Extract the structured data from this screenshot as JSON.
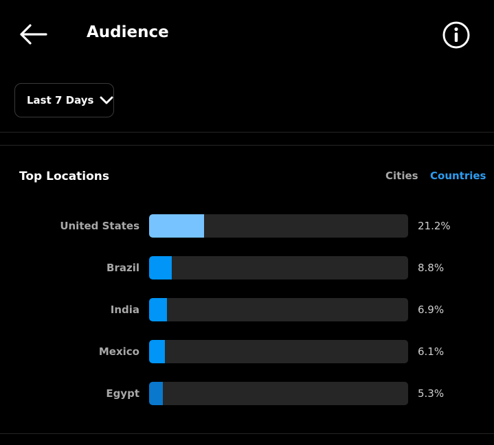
{
  "header": {
    "title": "Audience",
    "back_icon": "arrow-left-icon",
    "info_icon": "info-circle-icon"
  },
  "filter": {
    "range_label": "Last 7 Days",
    "chevron_icon": "chevron-down-icon"
  },
  "top_locations": {
    "title": "Top Locations",
    "tabs": [
      {
        "label": "Cities",
        "selected": false
      },
      {
        "label": "Countries",
        "selected": true
      }
    ],
    "colors": {
      "accent": "#2d9cf0",
      "inactive": "#a8a8a8",
      "track": "#262626"
    }
  },
  "chart_data": {
    "type": "bar",
    "orientation": "horizontal",
    "categories": [
      "United States",
      "Brazil",
      "India",
      "Mexico",
      "Egypt"
    ],
    "values": [
      21.2,
      8.8,
      6.9,
      6.1,
      5.3
    ],
    "value_labels": [
      "21.2%",
      "8.8%",
      "6.9%",
      "6.1%",
      "5.3%"
    ],
    "xlim": [
      0,
      100
    ],
    "bar_colors": [
      "#76c3ff",
      "#0095f6",
      "#0095f6",
      "#0095f6",
      "#0a78cc"
    ],
    "grid": false
  }
}
